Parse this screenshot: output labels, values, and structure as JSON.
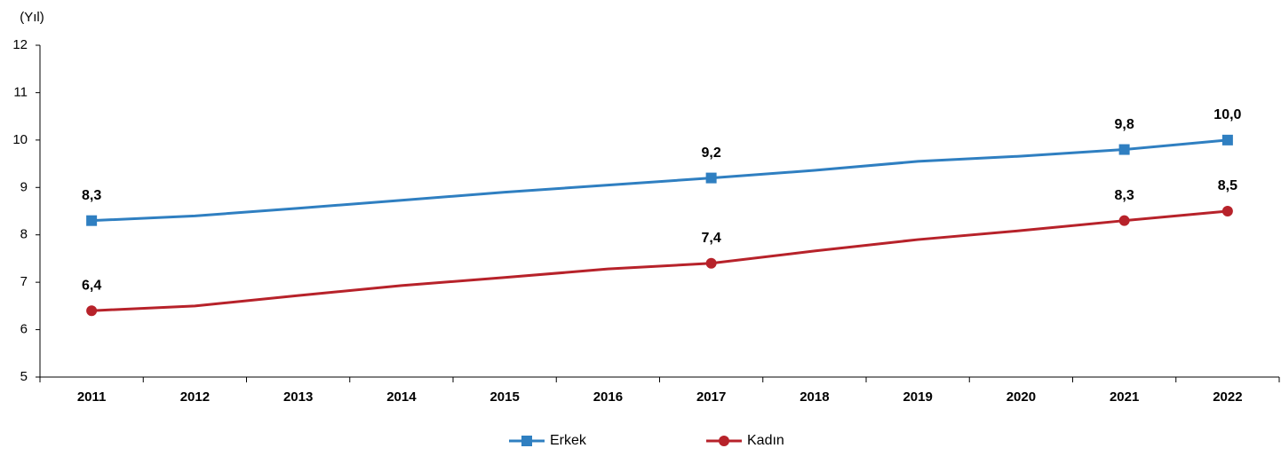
{
  "chart_data": {
    "type": "line",
    "y_label": "(Yıl)",
    "categories": [
      "2011",
      "2012",
      "2013",
      "2014",
      "2015",
      "2016",
      "2017",
      "2018",
      "2019",
      "2020",
      "2021",
      "2022"
    ],
    "series": [
      {
        "name": "Erkek",
        "color": "#2f7fc1",
        "marker": "square",
        "values": [
          8.3,
          8.4,
          8.56,
          8.73,
          8.9,
          9.05,
          9.2,
          9.36,
          9.55,
          9.66,
          9.8,
          10.0
        ],
        "value_labels": [
          "8,3",
          null,
          null,
          null,
          null,
          null,
          "9,2",
          null,
          null,
          null,
          "9,8",
          "10,0"
        ]
      },
      {
        "name": "Kadın",
        "color": "#b7222a",
        "marker": "circle",
        "values": [
          6.4,
          6.5,
          6.72,
          6.93,
          7.1,
          7.28,
          7.4,
          7.66,
          7.9,
          8.09,
          8.3,
          8.5
        ],
        "value_labels": [
          "6,4",
          null,
          null,
          null,
          null,
          null,
          "7,4",
          null,
          null,
          null,
          "8,3",
          "8,5"
        ]
      }
    ],
    "ylim": [
      5,
      12
    ],
    "yticks": [
      5,
      6,
      7,
      8,
      9,
      10,
      11,
      12
    ],
    "legend": "bottom"
  }
}
